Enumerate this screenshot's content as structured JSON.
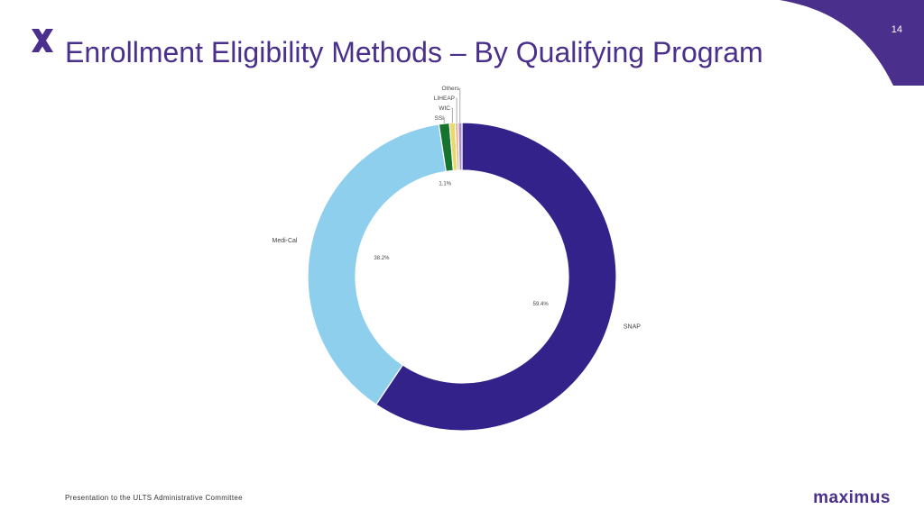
{
  "slide": {
    "page_number": "14",
    "title": "Enrollment Eligibility Methods – By Qualifying Program",
    "footer": "Presentation to the ULTS Administrative Committee",
    "brand": "maximus",
    "accent_color": "#4a2f8c",
    "logo_icon": "x-logo-icon"
  },
  "chart_data": {
    "type": "pie",
    "donut": true,
    "title": "",
    "slices": [
      {
        "label": "SNAP",
        "value": 59.4,
        "value_label": "59.4%",
        "color": "#32228a"
      },
      {
        "label": "Medi-Cal",
        "value": 38.2,
        "value_label": "38.2%",
        "color": "#8ecfee"
      },
      {
        "label": "SSI",
        "value": 1.1,
        "value_label": "1.1%",
        "color": "#17742e"
      },
      {
        "label": "WIC",
        "value": 0.6,
        "value_label": "",
        "color": "#e9d96a"
      },
      {
        "label": "LIHEAP",
        "value": 0.3,
        "value_label": "",
        "color": "#f0a882"
      },
      {
        "label": "Others",
        "value": 0.4,
        "value_label": "",
        "color": "#a98fc4"
      }
    ]
  }
}
